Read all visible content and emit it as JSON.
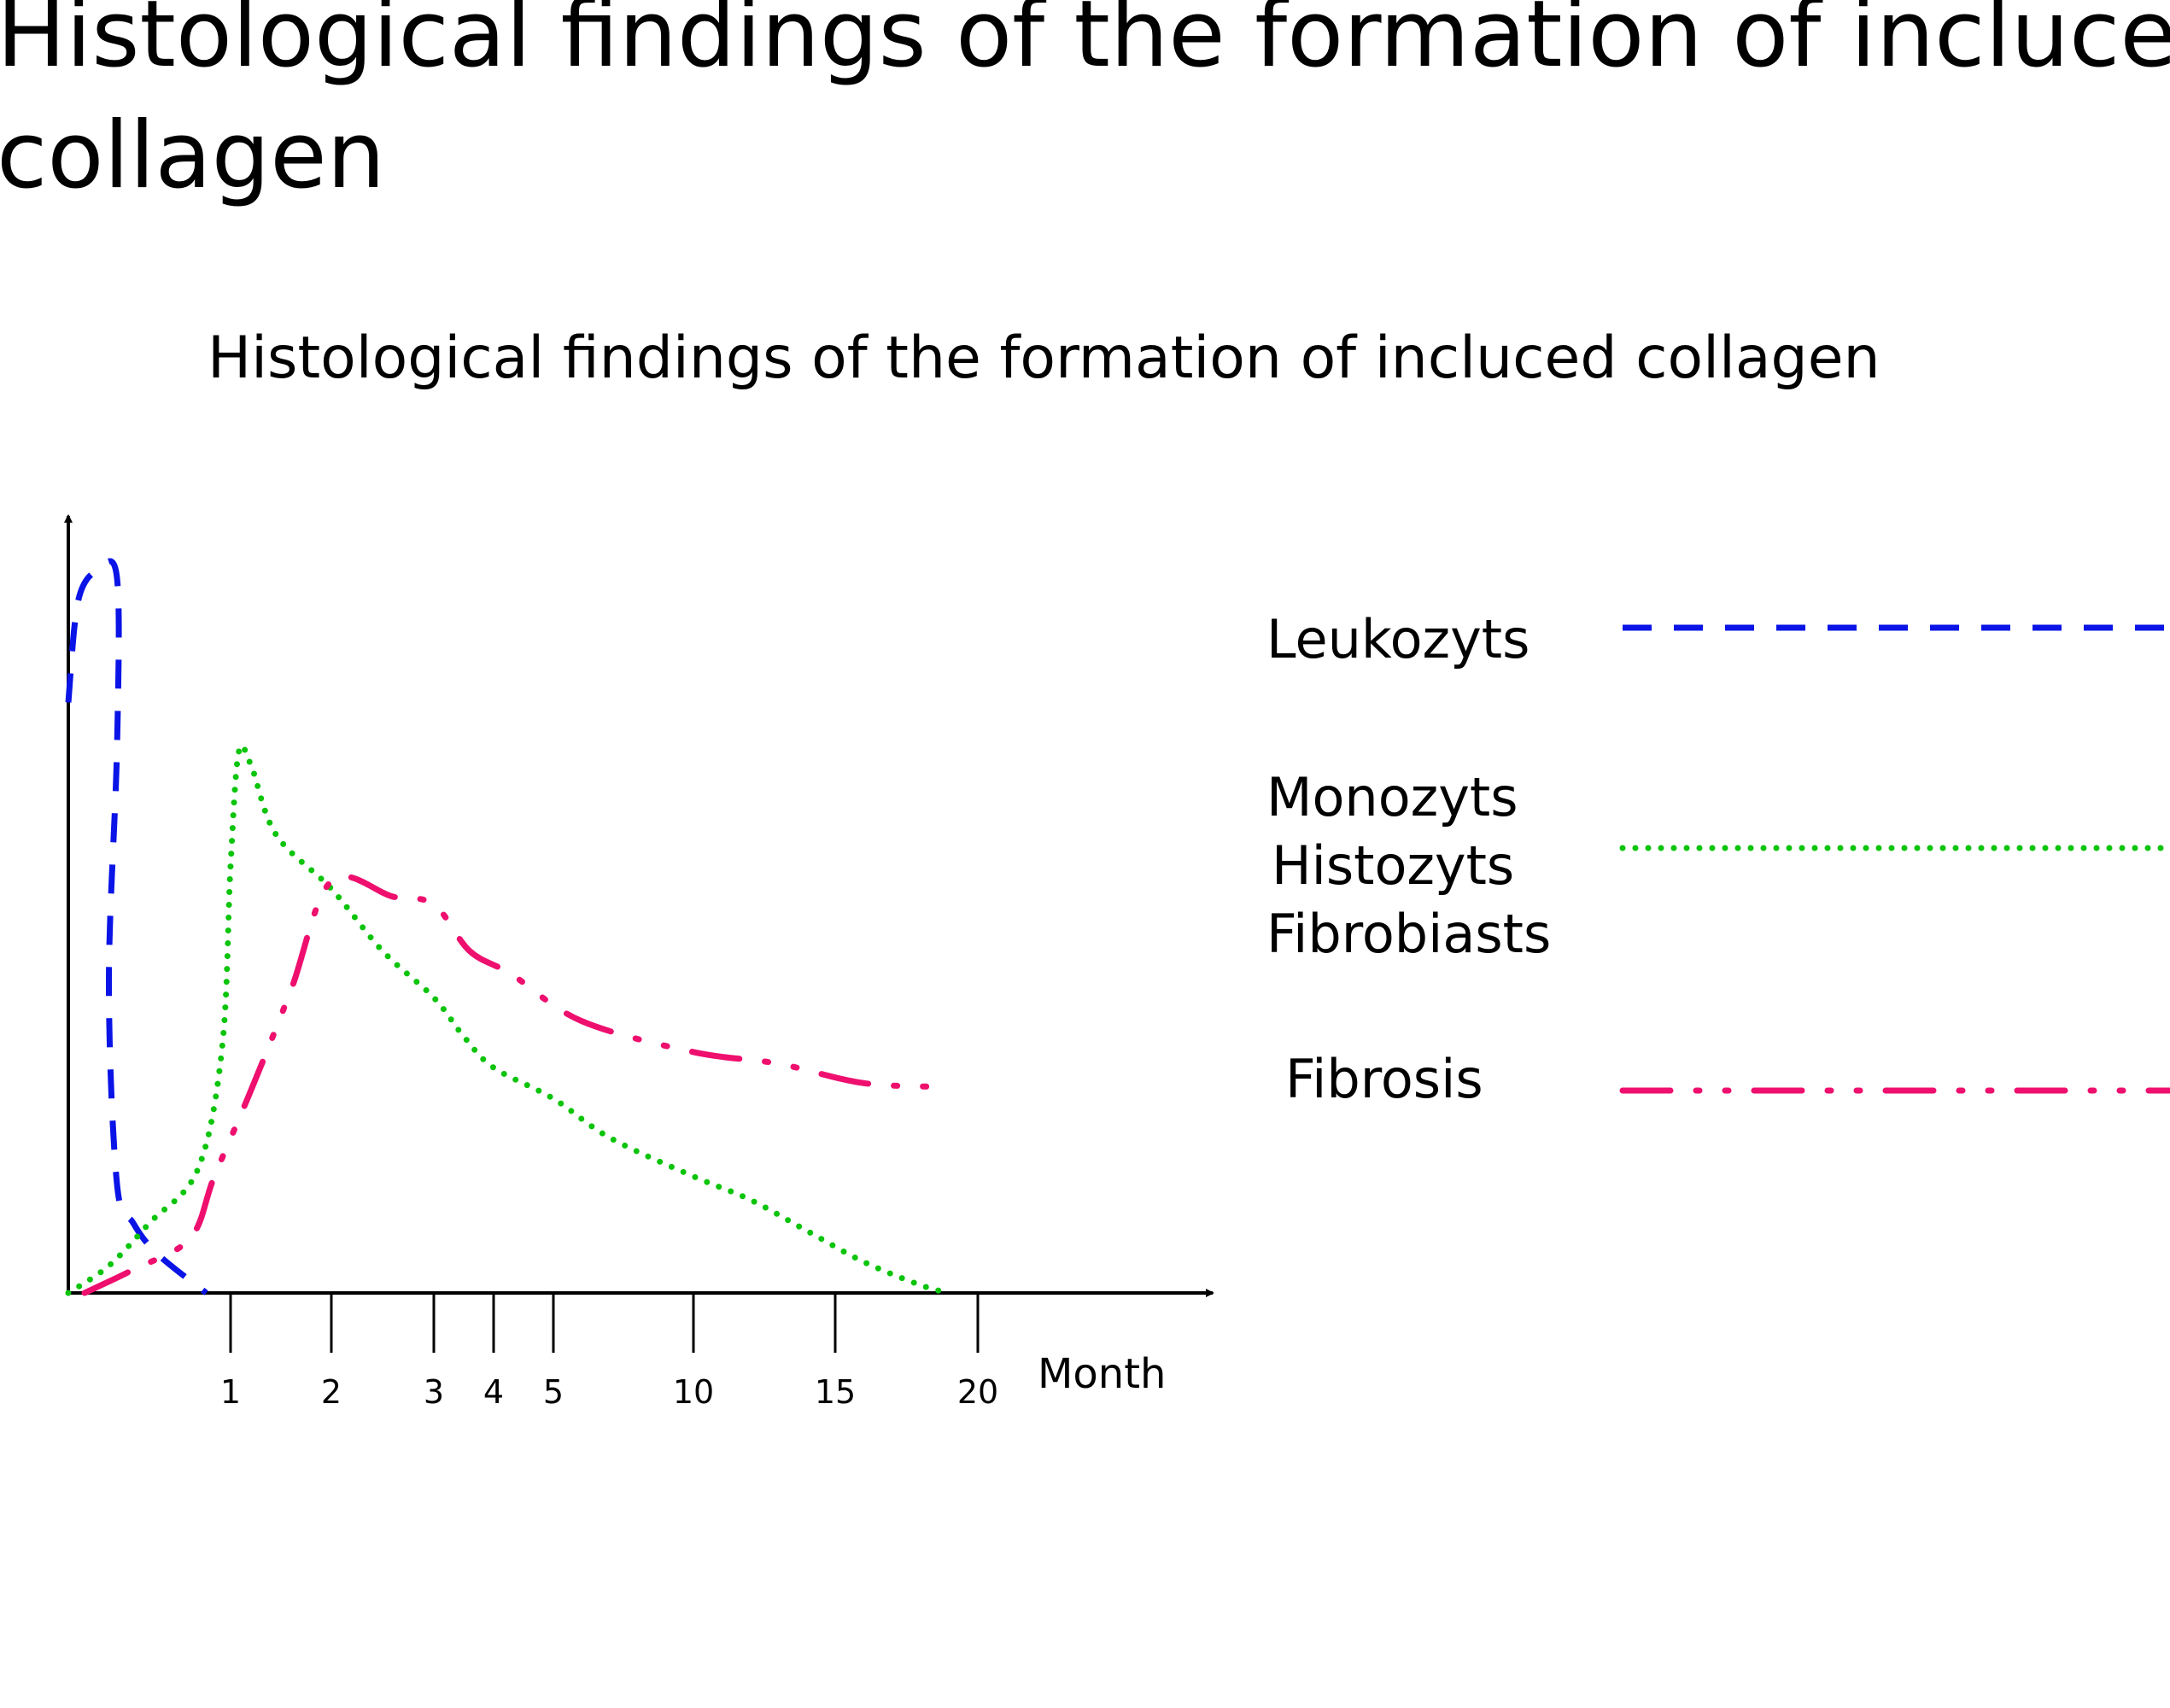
{
  "heading": {
    "line1": "Histological findings of the formation of incluced",
    "line2": "collagen"
  },
  "chart_data": {
    "type": "line",
    "title": "Histological findings of the formation of incluced collagen",
    "xlabel": "Month",
    "ylabel": "",
    "x_ticks": [
      "1",
      "2",
      "3",
      "4",
      "5",
      "10",
      "15",
      "20"
    ],
    "grid": false,
    "legend_placement": "right",
    "series": [
      {
        "name": "Leukozyts",
        "label_lines": [
          "Leukozyts"
        ],
        "color": "#0a14e6",
        "dash": "dashed",
        "points": [
          [
            0,
            7.6
          ],
          [
            0.06,
            8.9
          ],
          [
            0.18,
            9.3
          ],
          [
            0.3,
            9.2
          ],
          [
            0.3,
            7.0
          ],
          [
            0.25,
            4.0
          ],
          [
            0.3,
            1.4
          ],
          [
            0.4,
            0.9
          ],
          [
            0.55,
            0.5
          ],
          [
            0.85,
            0
          ]
        ]
      },
      {
        "name": "Monozyts Histozyts Fibrobiasts",
        "label_lines": [
          "Monozyts",
          "Histozyts",
          "Fibrobiasts"
        ],
        "color": "#0bc40b",
        "dash": "dotted",
        "points": [
          [
            0,
            0
          ],
          [
            0.25,
            0.35
          ],
          [
            0.5,
            0.9
          ],
          [
            0.8,
            1.6
          ],
          [
            0.95,
            3.2
          ],
          [
            1,
            5.5
          ],
          [
            1.08,
            6.95
          ],
          [
            1.2,
            6.8
          ],
          [
            1.45,
            5.9
          ],
          [
            2,
            5.2
          ],
          [
            2.5,
            4.4
          ],
          [
            3,
            3.8
          ],
          [
            3.5,
            3.3
          ],
          [
            4,
            2.9
          ],
          [
            5,
            2.5
          ],
          [
            7,
            2.0
          ],
          [
            10,
            1.5
          ],
          [
            12,
            1.2
          ],
          [
            14,
            0.8
          ],
          [
            16,
            0.4
          ],
          [
            18,
            0.1
          ],
          [
            19,
            0
          ]
        ]
      },
      {
        "name": "Fibrosis",
        "label_lines": [
          "Fibrosis"
        ],
        "color": "#ee0f6e",
        "dash": "dash-dot-dot",
        "points": [
          [
            0.1,
            0
          ],
          [
            0.4,
            0.3
          ],
          [
            0.75,
            0.7
          ],
          [
            0.9,
            1.5
          ],
          [
            1.2,
            2.6
          ],
          [
            1.6,
            3.9
          ],
          [
            2,
            5.3
          ],
          [
            2.6,
            5.1
          ],
          [
            3,
            5.0
          ],
          [
            3.6,
            4.4
          ],
          [
            4.3,
            4.1
          ],
          [
            6,
            3.5
          ],
          [
            10,
            3.1
          ],
          [
            13,
            2.95
          ],
          [
            16,
            2.7
          ],
          [
            19,
            2.65
          ]
        ]
      }
    ],
    "xlim": [
      0,
      24
    ],
    "ylim": [
      0,
      10
    ]
  }
}
